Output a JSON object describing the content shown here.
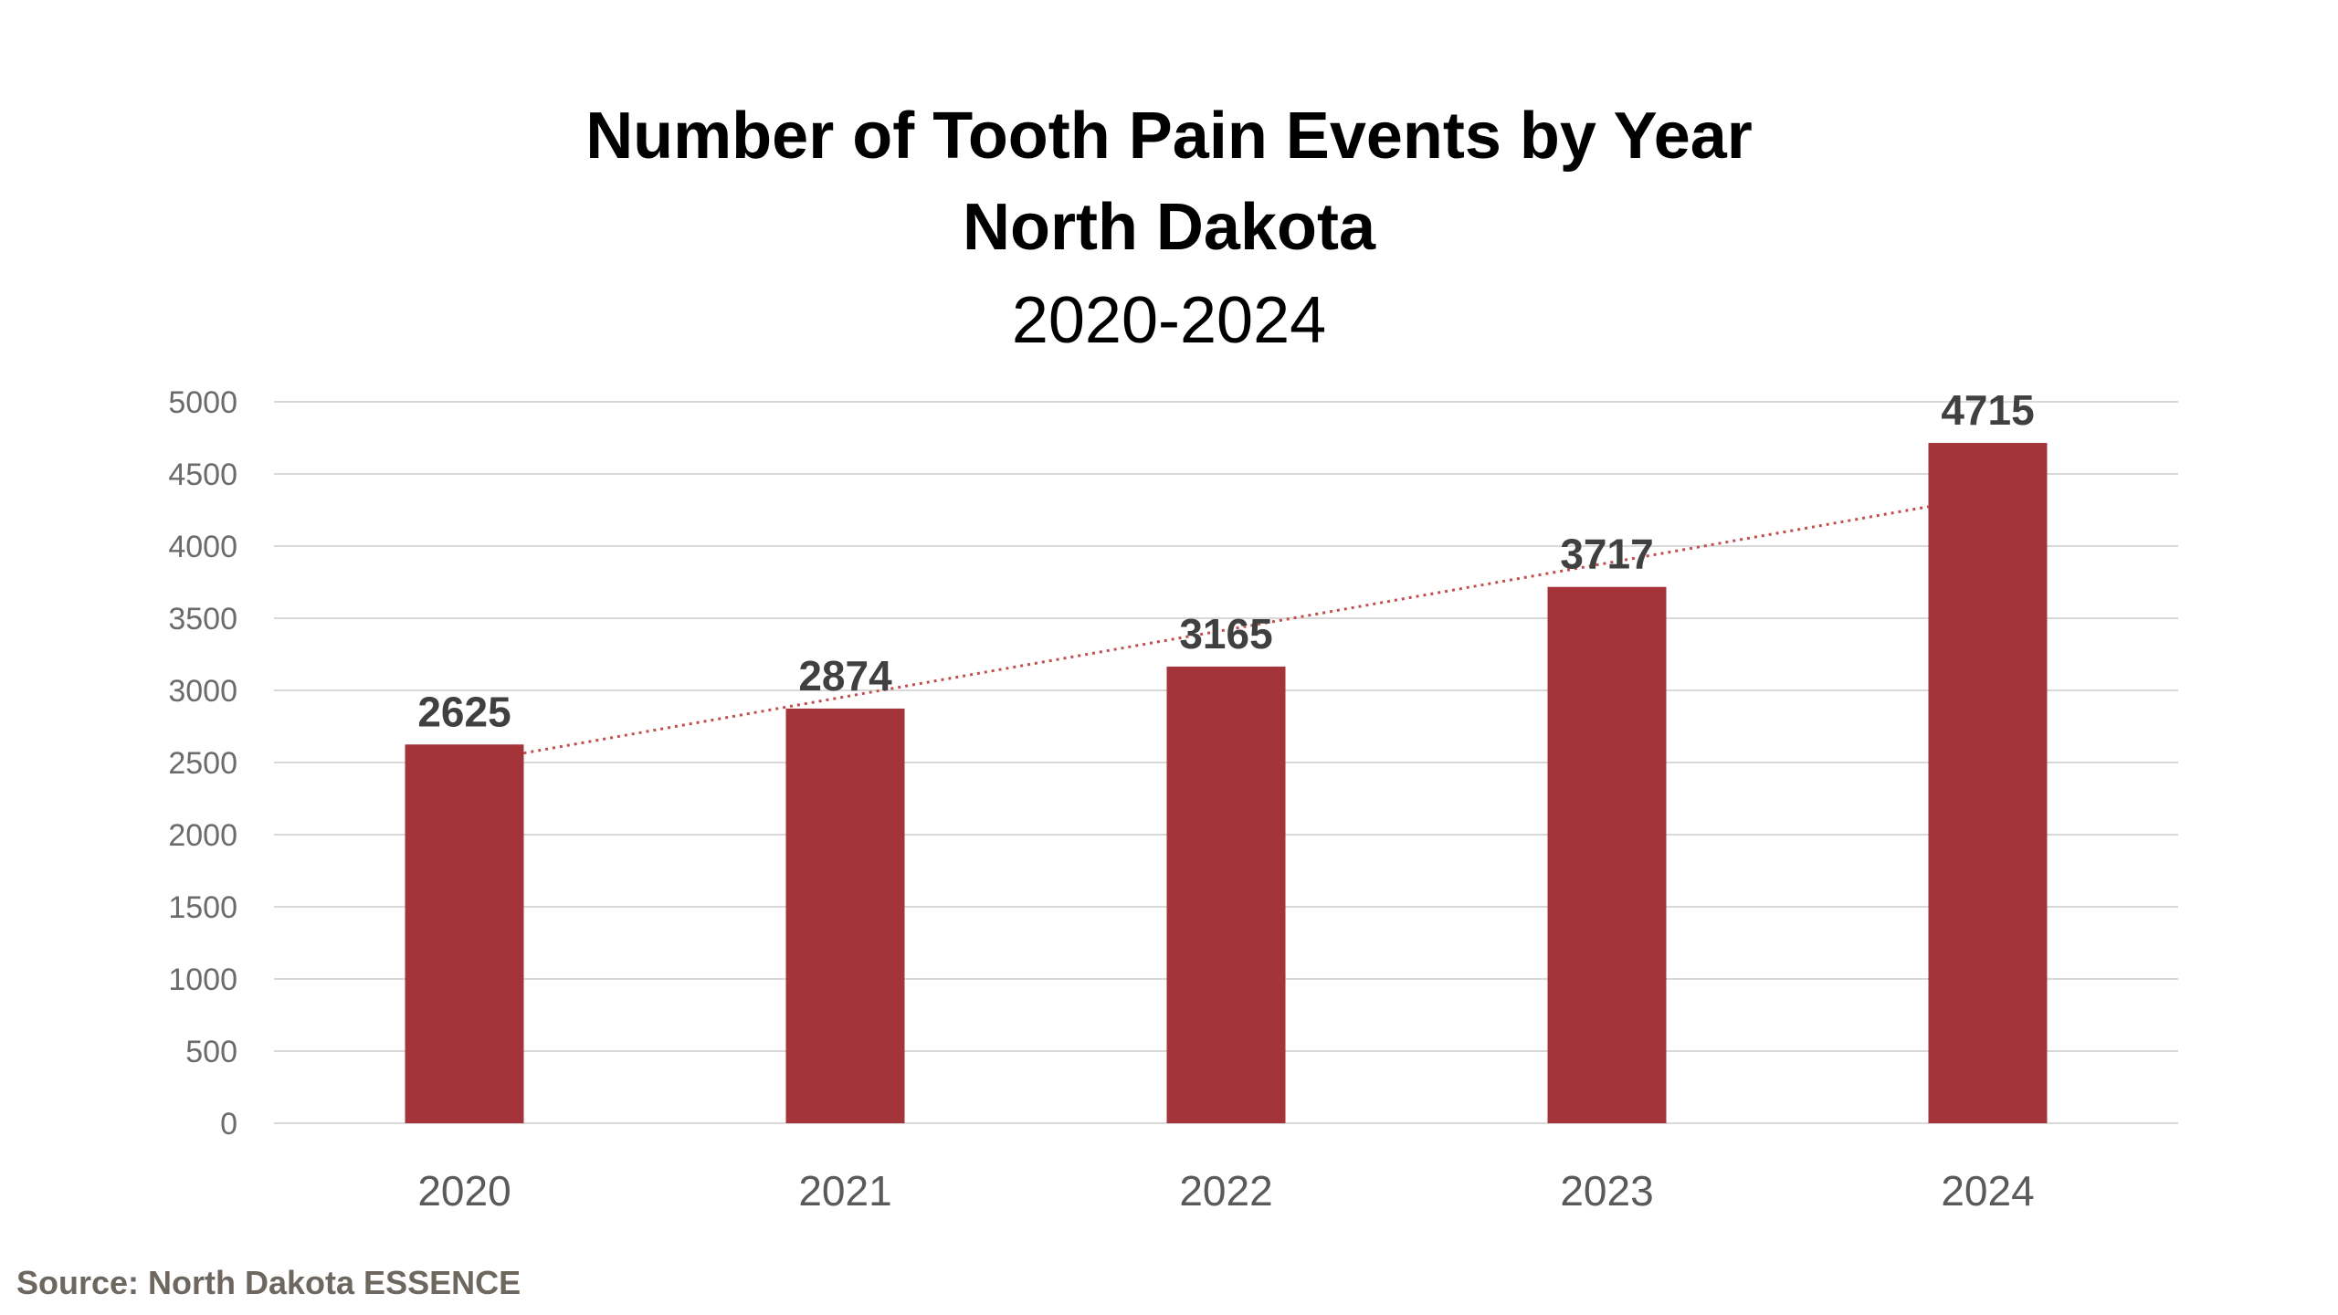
{
  "title": {
    "line1": "Number of Tooth Pain Events by Year",
    "line2": "North Dakota",
    "line3": "2020-2024"
  },
  "source": "Source: North Dakota ESSENCE",
  "colors": {
    "bar": "#a4343a",
    "trendline": "#c0504d",
    "gridline": "#d9d9d9"
  },
  "chart_data": {
    "type": "bar",
    "title": "Number of Tooth Pain Events by Year North Dakota 2020-2024",
    "categories": [
      "2020",
      "2021",
      "2022",
      "2023",
      "2024"
    ],
    "values": [
      2625,
      2874,
      3165,
      3717,
      4715
    ],
    "data_labels": [
      "2625",
      "2874",
      "3165",
      "3717",
      "4715"
    ],
    "ylim": [
      0,
      5000
    ],
    "yticks": [
      0,
      500,
      1000,
      1500,
      2000,
      2500,
      3000,
      3500,
      4000,
      4500,
      5000
    ],
    "ytick_labels": [
      "0",
      "500",
      "1000",
      "1500",
      "2000",
      "2500",
      "3000",
      "3500",
      "4000",
      "4500",
      "5000"
    ],
    "grid": true,
    "legend": "none",
    "trendline": "linear, dotted"
  }
}
